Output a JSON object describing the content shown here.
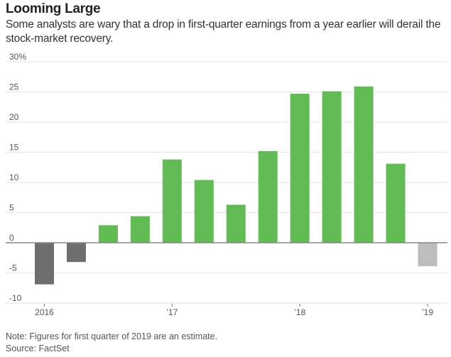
{
  "chart_data": {
    "type": "bar",
    "title": "Looming Large",
    "subtitle": "Some analysts are wary that a drop in first-quarter earnings from a year earlier will derail the stock-market recovery.",
    "xlabel": "",
    "ylabel": "",
    "ylim": [
      -10,
      30
    ],
    "yticks": [
      {
        "value": 30,
        "label": "30%"
      },
      {
        "value": 25,
        "label": "25"
      },
      {
        "value": 20,
        "label": "20"
      },
      {
        "value": 15,
        "label": "15"
      },
      {
        "value": 10,
        "label": "10"
      },
      {
        "value": 5,
        "label": "5"
      },
      {
        "value": 0,
        "label": "0"
      },
      {
        "value": -5,
        "label": "-5"
      },
      {
        "value": -10,
        "label": "-10"
      }
    ],
    "xticks": [
      {
        "index": 0,
        "label": "2016"
      },
      {
        "index": 4,
        "label": "’17"
      },
      {
        "index": 8,
        "label": "’18"
      },
      {
        "index": 12,
        "label": "’19"
      }
    ],
    "categories": [
      "Q1 2016",
      "Q2 2016",
      "Q3 2016",
      "Q4 2016",
      "Q1 2017",
      "Q2 2017",
      "Q3 2017",
      "Q4 2017",
      "Q1 2018",
      "Q2 2018",
      "Q3 2018",
      "Q4 2018",
      "Q1 2019"
    ],
    "values": [
      -6.9,
      -3.2,
      2.9,
      4.4,
      13.8,
      10.4,
      6.3,
      15.2,
      24.7,
      25.1,
      25.9,
      13.1,
      -3.9
    ],
    "bar_styles": [
      "negative",
      "negative",
      "positive",
      "positive",
      "positive",
      "positive",
      "positive",
      "positive",
      "positive",
      "positive",
      "positive",
      "positive",
      "estimate"
    ],
    "colors": {
      "positive": "#62bb55",
      "negative": "#6e6e6e",
      "estimate": "#bdbdbd",
      "grid": "#e8e8e8",
      "zero": "#888888"
    },
    "grid": true,
    "legend": "none"
  },
  "footer": {
    "note": "Note: Figures for first quarter of 2019 are an estimate.",
    "source": "Source: FactSet"
  }
}
